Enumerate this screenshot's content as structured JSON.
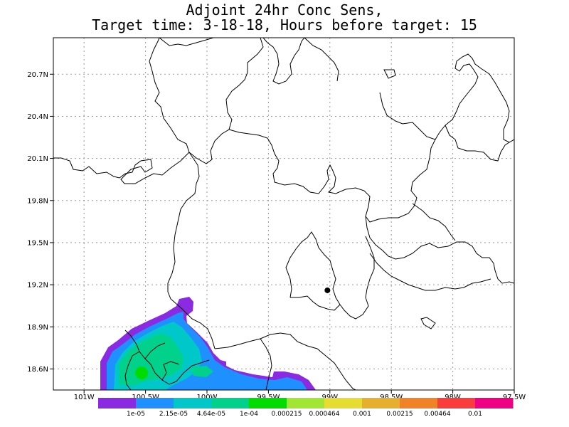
{
  "title": {
    "line1": "Adjoint 24hr Conc Sens,",
    "line2": "Target time: 3-18-18, Hours before target: 15"
  },
  "map": {
    "lat_ticks": [
      "20.7N",
      "20.4N",
      "20.1N",
      "19.8N",
      "19.5N",
      "19.2N",
      "18.9N",
      "18.6N"
    ],
    "lat_values": [
      20.7,
      20.4,
      20.1,
      19.8,
      19.5,
      19.2,
      18.9,
      18.6
    ],
    "lon_ticks": [
      "101W",
      "100.5W",
      "100W",
      "99.5W",
      "99W",
      "98.5W",
      "98W",
      "97.5W"
    ],
    "lon_values": [
      -101,
      -100.5,
      -100,
      -99.5,
      -99,
      -98.5,
      -98,
      -97.5
    ],
    "lon_range": [
      -101.25,
      -97.5
    ],
    "lat_range": [
      18.45,
      20.96
    ],
    "grid": "dotted",
    "target_point": {
      "lon": -99.02,
      "lat": 19.16
    }
  },
  "colorbar": {
    "colors": [
      "#8a2be2",
      "#1e90ff",
      "#00c8c8",
      "#00d28c",
      "#00dc00",
      "#a0e632",
      "#e6dc32",
      "#e6af2d",
      "#f08228",
      "#fa3c3c",
      "#f00082"
    ],
    "labels": [
      "1e-05",
      "2.15e-05",
      "4.64e-05",
      "1e-04",
      "0.000215",
      "0.000464",
      "0.001",
      "0.00215",
      "0.00464",
      "0.01"
    ]
  }
}
